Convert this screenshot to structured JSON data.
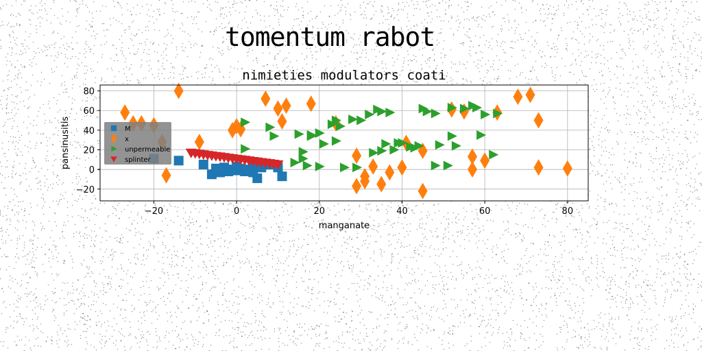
{
  "figure": {
    "suptitle": "tomentum rabot"
  },
  "chart_data": {
    "type": "scatter",
    "title": "nimieties modulators coati",
    "xlabel": "manganate",
    "ylabel": "pansinusitis",
    "xlim": [
      -33,
      85
    ],
    "ylim": [
      -32,
      86
    ],
    "xticks": [
      -20,
      0,
      20,
      40,
      60,
      80
    ],
    "xtick_labels": [
      "−20",
      "0",
      "20",
      "40",
      "60",
      "80"
    ],
    "yticks": [
      -20,
      0,
      20,
      40,
      60,
      80
    ],
    "ytick_labels": [
      "−20",
      "0",
      "20",
      "40",
      "60",
      "80"
    ],
    "grid": true,
    "legend": {
      "position": "center-left"
    },
    "series": [
      {
        "name": "M",
        "marker": "square",
        "color": "#1f77b4",
        "x": [
          -20,
          -14,
          -8,
          -6,
          -5,
          -4,
          -3,
          -2,
          -1,
          0,
          0,
          1,
          2,
          3,
          4,
          4,
          5,
          5,
          6,
          8,
          10,
          11
        ],
        "y": [
          11,
          9,
          5,
          -5,
          1,
          -3,
          2,
          -2,
          0,
          -1,
          3,
          1,
          -2,
          0,
          -3,
          3,
          -9,
          7,
          2,
          5,
          2,
          -7
        ]
      },
      {
        "name": "x",
        "marker": "diamond",
        "color": "#ff7f0e",
        "x": [
          -27,
          -25,
          -23,
          -20,
          -18,
          -17,
          -14,
          0,
          1,
          7,
          10,
          11,
          12,
          18,
          24,
          29,
          29,
          31,
          31,
          33,
          35,
          37,
          40,
          41,
          45,
          45,
          52,
          55,
          57,
          57,
          60,
          63,
          68,
          71,
          73,
          73,
          80,
          -9,
          -1
        ],
        "y": [
          58,
          47,
          47,
          45,
          28,
          -6,
          80,
          44,
          41,
          72,
          62,
          49,
          65,
          67,
          47,
          14,
          -17,
          -7,
          -12,
          3,
          -15,
          -3,
          2,
          27,
          19,
          -22,
          61,
          59,
          13,
          0,
          9,
          58,
          74,
          76,
          50,
          2,
          1,
          28,
          40
        ]
      },
      {
        "name": "unpermeable",
        "marker": "triangle-right",
        "color": "#2ca02c",
        "x": [
          2,
          2,
          8,
          9,
          14,
          15,
          16,
          16,
          17,
          18,
          18,
          20,
          20,
          21,
          23,
          24,
          24,
          25,
          26,
          28,
          29,
          30,
          32,
          33,
          34,
          35,
          35,
          36,
          37,
          38,
          39,
          40,
          42,
          43,
          44,
          45,
          46,
          48,
          48,
          49,
          51,
          52,
          52,
          53,
          55,
          57,
          58,
          59,
          60,
          62,
          63
        ],
        "y": [
          48,
          21,
          43,
          34,
          7,
          36,
          18,
          11,
          4,
          35,
          34,
          3,
          37,
          26,
          46,
          29,
          50,
          44,
          2,
          51,
          2,
          50,
          56,
          17,
          61,
          59,
          19,
          26,
          58,
          20,
          27,
          27,
          23,
          22,
          24,
          62,
          59,
          4,
          57,
          25,
          4,
          34,
          63,
          24,
          62,
          65,
          63,
          35,
          56,
          15,
          57
        ]
      },
      {
        "name": "splinter",
        "marker": "triangle-down",
        "color": "#d62728",
        "x": [
          -11,
          -10,
          -9,
          -8,
          -7,
          -6,
          -5,
          -4,
          -3,
          -2,
          -1,
          0,
          1,
          2,
          3,
          4,
          5,
          6,
          7,
          8,
          9,
          10
        ],
        "y": [
          17,
          16.4,
          15.9,
          15.3,
          14.7,
          14.2,
          13.6,
          13.1,
          12.5,
          11.9,
          11.4,
          10.8,
          10.2,
          9.7,
          9.1,
          8.5,
          8.0,
          7.4,
          6.8,
          6.3,
          5.7,
          5.1
        ]
      }
    ]
  }
}
